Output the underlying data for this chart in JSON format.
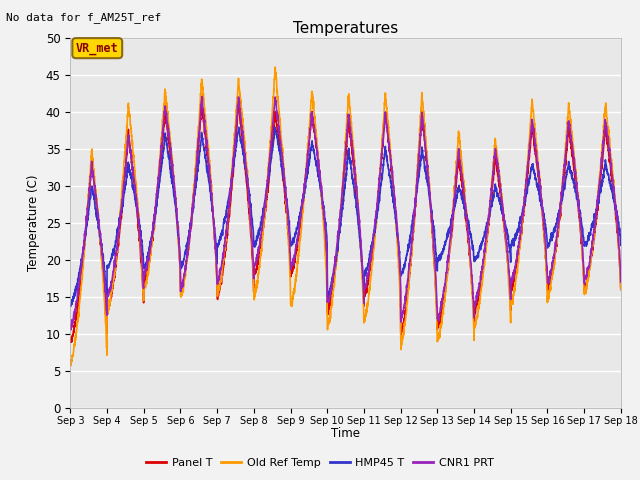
{
  "title": "Temperatures",
  "xlabel": "Time",
  "ylabel": "Temperature (C)",
  "note": "No data for f_AM25T_ref",
  "vr_label": "VR_met",
  "ylim": [
    0,
    50
  ],
  "yticks": [
    0,
    5,
    10,
    15,
    20,
    25,
    30,
    35,
    40,
    45,
    50
  ],
  "xtick_labels": [
    "Sep 3",
    "Sep 4",
    "Sep 5",
    "Sep 6",
    "Sep 7",
    "Sep 8",
    "Sep 9",
    "Sep 10",
    "Sep 11",
    "Sep 12",
    "Sep 13",
    "Sep 14",
    "Sep 15",
    "Sep 16",
    "Sep 17",
    "Sep 18"
  ],
  "bg_color": "#e8e8e8",
  "fig_bg": "#f2f2f2",
  "line_colors": {
    "panel": "#dd0000",
    "oldref": "#ff9900",
    "hmp45": "#3333cc",
    "cnr1": "#9922bb"
  },
  "legend_items": [
    {
      "label": "Panel T",
      "color": "#dd0000"
    },
    {
      "label": "Old Ref Temp",
      "color": "#ff9900"
    },
    {
      "label": "HMP45 T",
      "color": "#3333cc"
    },
    {
      "label": "CNR1 PRT",
      "color": "#9922bb"
    }
  ]
}
